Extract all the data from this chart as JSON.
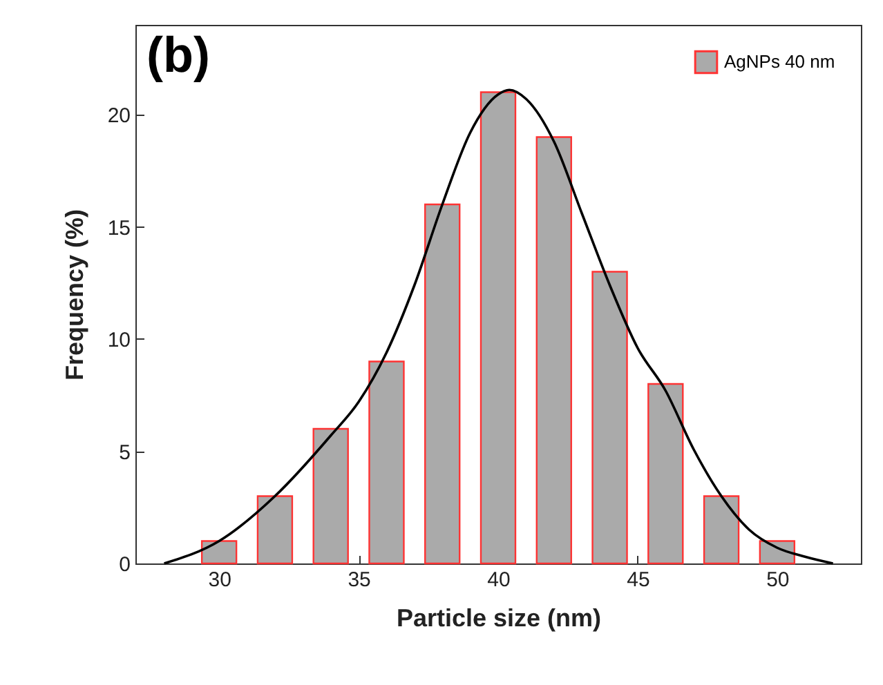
{
  "chart_data": {
    "type": "bar",
    "xlabel": "Particle size (nm)",
    "ylabel": "Frequency (%)",
    "annotations": [
      "(b)"
    ],
    "x": [
      30,
      32,
      34,
      36,
      38,
      40,
      42,
      44,
      46,
      48,
      50
    ],
    "series": [
      {
        "name": "AgNPs 40 nm",
        "color": "#aaaaaa",
        "values": [
          1,
          3,
          6,
          9,
          16,
          21,
          19,
          13,
          8,
          3,
          1
        ]
      },
      {
        "type": "line",
        "color": "#000000",
        "x": [
          28.03,
          30,
          32,
          34,
          35,
          36,
          37,
          38,
          39,
          40,
          40.4,
          41,
          42,
          43,
          44,
          45,
          46,
          47,
          48,
          49,
          50,
          51,
          52
        ],
        "values": [
          0,
          1.0,
          3.0,
          5.7,
          7.2,
          9.4,
          12.4,
          16.0,
          19.2,
          20.9,
          21.1,
          20.7,
          18.8,
          15.6,
          12.4,
          9.6,
          7.7,
          5.1,
          3.0,
          1.5,
          0.7,
          0.3,
          0
        ]
      }
    ],
    "xlim": [
      27,
      53
    ],
    "xticks": [
      30,
      35,
      40,
      45,
      50
    ],
    "ylim": [
      0,
      24
    ],
    "yticks": [
      0,
      5,
      10,
      15,
      20
    ],
    "grid": false,
    "legend": "top right",
    "marker": "none",
    "line_style": "solid"
  }
}
